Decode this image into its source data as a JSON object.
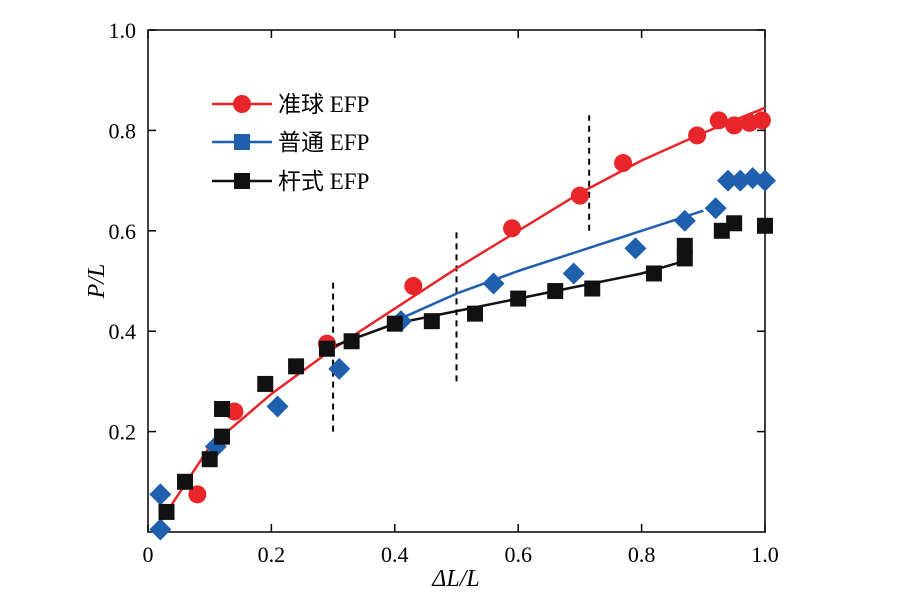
{
  "chart_data": {
    "type": "scatter",
    "xlabel": "ΔL/L",
    "ylabel": "P/L",
    "xlim": [
      0,
      1.0
    ],
    "ylim": [
      0,
      1.0
    ],
    "xticks": [
      "0",
      "0.2",
      "0.4",
      "0.6",
      "0.8",
      "1.0"
    ],
    "yticks": [
      "0.2",
      "0.4",
      "0.6",
      "0.8",
      "1.0"
    ],
    "legend_position": "top-left",
    "grid": false,
    "dividers_x": [
      0.3,
      0.5,
      0.715
    ],
    "series": [
      {
        "name": "准球 EFP",
        "marker": "circle",
        "color": "#e8262a",
        "points": [
          [
            0.08,
            0.075
          ],
          [
            0.14,
            0.24
          ],
          [
            0.29,
            0.375
          ],
          [
            0.43,
            0.49
          ],
          [
            0.59,
            0.605
          ],
          [
            0.7,
            0.67
          ],
          [
            0.77,
            0.735
          ],
          [
            0.89,
            0.79
          ],
          [
            0.925,
            0.82
          ],
          [
            0.95,
            0.81
          ],
          [
            0.975,
            0.815
          ],
          [
            0.995,
            0.82
          ]
        ],
        "fit": [
          [
            0.02,
            0.02
          ],
          [
            0.1,
            0.17
          ],
          [
            0.2,
            0.275
          ],
          [
            0.3,
            0.365
          ],
          [
            0.4,
            0.445
          ],
          [
            0.5,
            0.525
          ],
          [
            0.6,
            0.6
          ],
          [
            0.7,
            0.675
          ],
          [
            0.8,
            0.74
          ],
          [
            0.9,
            0.795
          ],
          [
            1.0,
            0.845
          ]
        ]
      },
      {
        "name": "普通 EFP",
        "marker": "diamond",
        "color": "#1f5fad",
        "points": [
          [
            0.02,
            0.005
          ],
          [
            0.02,
            0.075
          ],
          [
            0.11,
            0.17
          ],
          [
            0.21,
            0.25
          ],
          [
            0.31,
            0.325
          ],
          [
            0.41,
            0.42
          ],
          [
            0.56,
            0.495
          ],
          [
            0.69,
            0.515
          ],
          [
            0.79,
            0.565
          ],
          [
            0.87,
            0.62
          ],
          [
            0.92,
            0.645
          ],
          [
            0.94,
            0.7
          ],
          [
            0.96,
            0.7
          ],
          [
            0.98,
            0.705
          ],
          [
            1.0,
            0.7
          ]
        ],
        "fit": [
          [
            0.4,
            0.42
          ],
          [
            0.5,
            0.475
          ],
          [
            0.6,
            0.52
          ],
          [
            0.7,
            0.56
          ],
          [
            0.8,
            0.6
          ],
          [
            0.9,
            0.64
          ]
        ]
      },
      {
        "name": "杆式 EFP",
        "marker": "square",
        "color": "#111111",
        "points": [
          [
            0.03,
            0.04
          ],
          [
            0.06,
            0.1
          ],
          [
            0.1,
            0.145
          ],
          [
            0.12,
            0.19
          ],
          [
            0.12,
            0.245
          ],
          [
            0.19,
            0.295
          ],
          [
            0.24,
            0.33
          ],
          [
            0.29,
            0.365
          ],
          [
            0.33,
            0.38
          ],
          [
            0.4,
            0.415
          ],
          [
            0.46,
            0.42
          ],
          [
            0.53,
            0.435
          ],
          [
            0.6,
            0.465
          ],
          [
            0.66,
            0.48
          ],
          [
            0.72,
            0.485
          ],
          [
            0.82,
            0.515
          ],
          [
            0.87,
            0.545
          ],
          [
            0.87,
            0.57
          ],
          [
            0.93,
            0.6
          ],
          [
            0.95,
            0.615
          ],
          [
            1.0,
            0.61
          ]
        ],
        "fit": [
          [
            0.3,
            0.37
          ],
          [
            0.4,
            0.415
          ],
          [
            0.5,
            0.44
          ],
          [
            0.6,
            0.465
          ],
          [
            0.7,
            0.49
          ],
          [
            0.8,
            0.515
          ],
          [
            0.87,
            0.54
          ]
        ]
      }
    ]
  }
}
